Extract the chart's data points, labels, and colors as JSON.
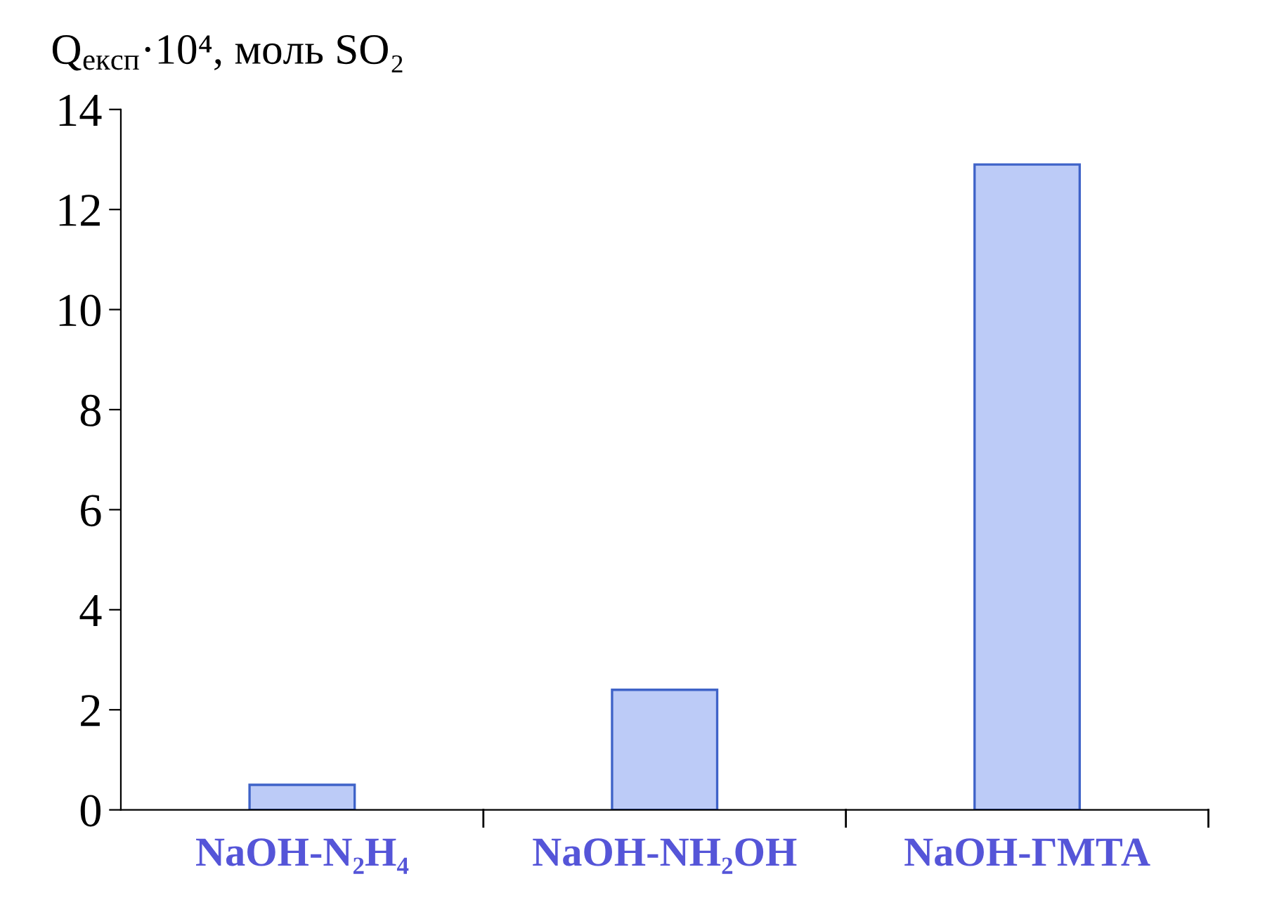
{
  "chart_data": {
    "type": "bar",
    "ylabel": "Q$_{експ}$·10⁴, моль SO₂",
    "categories": [
      "NaOH-N₂H₄",
      "NaOH-NH₂OH",
      "NaOH-ГМТА"
    ],
    "values": [
      0.5,
      2.4,
      12.9
    ],
    "color": "#bccbf7",
    "ylim": [
      0,
      14
    ],
    "yticks": [
      0,
      2,
      4,
      6,
      8,
      10,
      12,
      14
    ],
    "grid": false,
    "legend": false
  }
}
